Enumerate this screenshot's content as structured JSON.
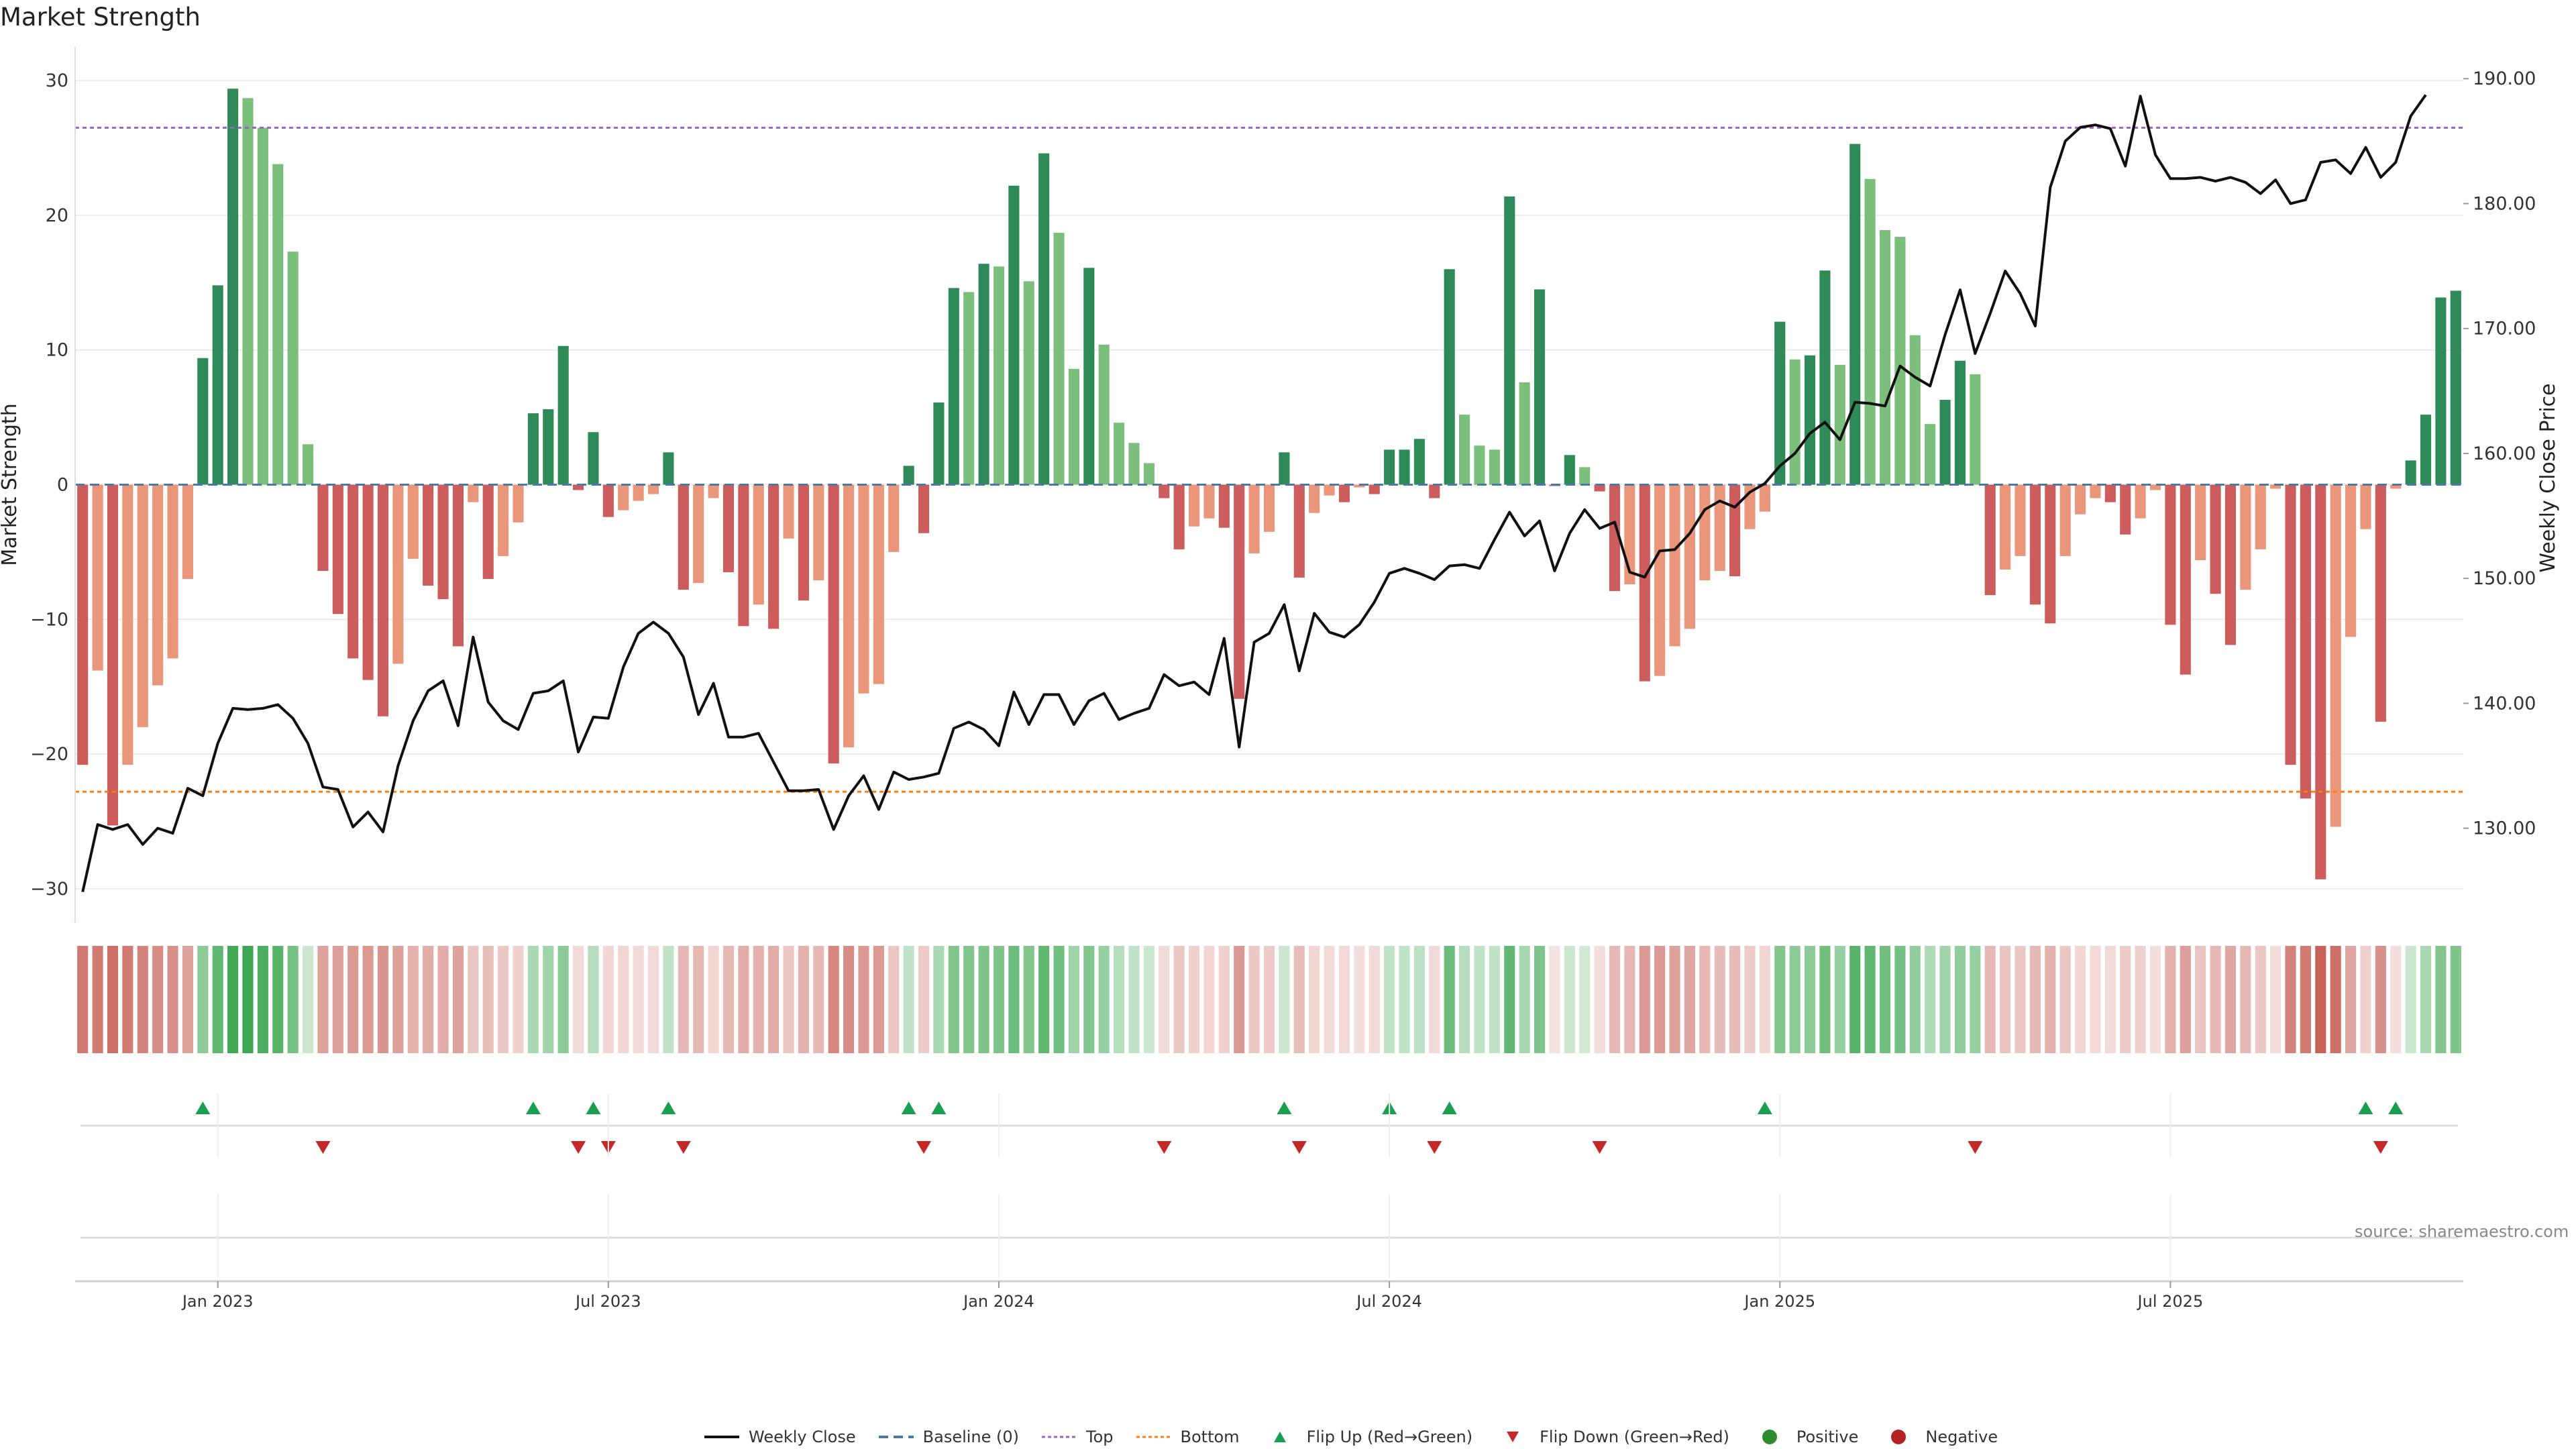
{
  "title": "Market Strength",
  "source": "source: sharemaestro.com",
  "colors": {
    "green_dark": "#2e8b57",
    "green_light": "#7cbf7c",
    "red_dark": "#cd5c5c",
    "red_light": "#e9967a",
    "line": "#111111",
    "baseline": "#4e79a7",
    "top": "#9467bd",
    "bottom": "#ff7f0e",
    "flip_up": "#1a9e4f",
    "flip_down": "#c62828",
    "positive": "#2e8b2e",
    "negative": "#b22222"
  },
  "legend": [
    {
      "key": "line",
      "label": "Weekly Close"
    },
    {
      "key": "baseline",
      "label": "Baseline (0)"
    },
    {
      "key": "top",
      "label": "Top"
    },
    {
      "key": "bottom",
      "label": "Bottom"
    },
    {
      "key": "flip_up",
      "label": "Flip Up (Red→Green)"
    },
    {
      "key": "flip_down",
      "label": "Flip Down (Green→Red)"
    },
    {
      "key": "positive",
      "label": "Positive"
    },
    {
      "key": "negative",
      "label": "Negative"
    }
  ],
  "chart_data": {
    "type": "bar",
    "title": "Market Strength",
    "ylabel": "Market Strength",
    "y2label": "Weekly Close Price",
    "ylim": [
      -32,
      32
    ],
    "y2lim": [
      123,
      192
    ],
    "yticks": [
      "30",
      "20",
      "10",
      "0",
      "−10",
      "−20",
      "−30"
    ],
    "y2ticks": [
      "190.00",
      "180.00",
      "170.00",
      "160.00",
      "150.00",
      "140.00",
      "130.00"
    ],
    "xticks": [
      "Jan 2023",
      "Jul 2023",
      "Jan 2024",
      "Jul 2024",
      "Jan 2025",
      "Jul 2025"
    ],
    "x_tick_weeks": [
      9,
      35,
      61,
      87,
      113,
      139
    ],
    "top_level": 26.5,
    "bottom_level": -22.8,
    "strength": [
      -20.8,
      -13.8,
      -25.3,
      -20.8,
      -18.0,
      -14.9,
      -12.9,
      -7.0,
      9.4,
      14.8,
      29.4,
      28.7,
      26.5,
      23.8,
      17.3,
      3.0,
      -6.4,
      -9.6,
      -12.9,
      -14.5,
      -17.2,
      -13.3,
      -5.5,
      -7.5,
      -8.5,
      -12.0,
      -1.3,
      -7.0,
      -5.3,
      -2.8,
      5.3,
      5.6,
      10.3,
      -0.4,
      3.9,
      -2.4,
      -1.9,
      -1.2,
      -0.7,
      2.4,
      -7.8,
      -7.3,
      -1.0,
      -6.5,
      -10.5,
      -8.9,
      -10.7,
      -4.0,
      -8.6,
      -7.1,
      -20.7,
      -19.5,
      -15.5,
      -14.8,
      -5.0,
      1.4,
      -3.6,
      6.1,
      14.6,
      14.3,
      16.4,
      16.2,
      22.2,
      15.1,
      24.6,
      18.7,
      8.6,
      16.1,
      10.4,
      4.6,
      3.1,
      1.6,
      -1.0,
      -4.8,
      -3.1,
      -2.5,
      -3.2,
      -15.9,
      -5.1,
      -3.5,
      2.4,
      -6.9,
      -2.1,
      -0.8,
      -1.3,
      -0.2,
      -0.7,
      2.6,
      2.6,
      3.4,
      -1.0,
      16.0,
      5.2,
      2.9,
      2.6,
      21.4,
      7.6,
      14.5,
      -0.1,
      2.2,
      1.3,
      -0.5,
      -7.9,
      -7.4,
      -14.6,
      -14.2,
      -12.0,
      -10.7,
      -7.1,
      -6.4,
      -6.8,
      -3.3,
      -2.0,
      12.1,
      9.3,
      9.6,
      15.9,
      8.9,
      25.3,
      22.7,
      18.9,
      18.4,
      11.1,
      4.5,
      6.3,
      9.2,
      8.2,
      -8.2,
      -6.3,
      -5.3,
      -8.9,
      -10.3,
      -5.3,
      -2.2,
      -1.0,
      -1.3,
      -3.7,
      -2.5,
      -0.4,
      -10.4,
      -14.1,
      -5.6,
      -8.1,
      -11.9,
      -7.8,
      -4.8,
      -0.3,
      -20.8,
      -23.3,
      -29.3,
      -25.4,
      -11.3,
      -3.3,
      -17.6,
      -0.3,
      1.8,
      5.2,
      13.9,
      14.4
    ],
    "close": [
      124.9,
      130.3,
      129.9,
      130.3,
      128.7,
      130.0,
      129.6,
      133.2,
      132.6,
      136.8,
      139.6,
      139.5,
      139.6,
      139.9,
      138.8,
      136.8,
      133.3,
      133.1,
      130.1,
      131.3,
      129.7,
      135.0,
      138.6,
      141.0,
      141.8,
      138.2,
      145.3,
      140.1,
      138.6,
      137.9,
      140.8,
      141.0,
      141.8,
      136.1,
      138.9,
      138.8,
      142.9,
      145.6,
      146.5,
      145.6,
      143.7,
      139.1,
      141.6,
      137.3,
      137.3,
      137.6,
      135.3,
      133.0,
      133.0,
      133.1,
      129.9,
      132.6,
      134.2,
      131.5,
      134.5,
      133.9,
      134.1,
      134.4,
      138.0,
      138.5,
      137.9,
      136.6,
      140.9,
      138.3,
      140.7,
      140.7,
      138.3,
      140.2,
      140.8,
      138.7,
      139.2,
      139.6,
      142.3,
      141.4,
      141.7,
      140.7,
      145.2,
      136.5,
      144.9,
      145.6,
      147.9,
      142.6,
      147.2,
      145.7,
      145.3,
      146.3,
      148.1,
      150.4,
      150.8,
      150.4,
      149.9,
      151.0,
      151.1,
      150.8,
      153.1,
      155.3,
      153.4,
      154.6,
      150.6,
      153.6,
      155.5,
      154.0,
      154.5,
      150.5,
      150.1,
      152.2,
      152.3,
      153.6,
      155.5,
      156.2,
      155.7,
      156.9,
      157.6,
      159.0,
      160.0,
      161.6,
      162.5,
      161.1,
      164.1,
      164.0,
      163.8,
      167.0,
      166.1,
      165.4,
      169.5,
      173.1,
      168.0,
      171.2,
      174.6,
      172.8,
      170.2,
      181.3,
      185.0,
      186.1,
      186.3,
      186.0,
      183.0,
      188.6,
      183.9,
      182.0,
      182.0,
      182.1,
      181.8,
      182.1,
      181.7,
      180.8,
      181.9,
      180.0,
      180.3,
      183.3,
      183.5,
      182.4,
      184.5,
      182.1,
      183.3,
      187.0,
      188.7
    ],
    "flip_up_weeks": [
      8,
      30,
      34,
      39,
      55,
      57,
      80,
      87,
      91,
      112,
      152,
      154
    ],
    "flip_down_weeks": [
      16,
      33,
      35,
      40,
      56,
      72,
      81,
      90,
      101,
      126,
      153
    ],
    "strip_levels": [
      0.72,
      0.72,
      0.78,
      0.72,
      0.68,
      0.62,
      0.6,
      0.5,
      0.55,
      0.75,
      0.9,
      0.92,
      0.85,
      0.8,
      0.65,
      0.25,
      0.5,
      0.52,
      0.55,
      0.55,
      0.58,
      0.52,
      0.42,
      0.45,
      0.45,
      0.5,
      0.3,
      0.35,
      0.3,
      0.25,
      0.4,
      0.45,
      0.55,
      0.2,
      0.35,
      0.22,
      0.22,
      0.2,
      0.2,
      0.3,
      0.38,
      0.38,
      0.22,
      0.38,
      0.45,
      0.42,
      0.45,
      0.3,
      0.42,
      0.38,
      0.65,
      0.62,
      0.55,
      0.55,
      0.3,
      0.3,
      0.28,
      0.4,
      0.6,
      0.6,
      0.62,
      0.62,
      0.7,
      0.6,
      0.75,
      0.68,
      0.45,
      0.6,
      0.5,
      0.35,
      0.3,
      0.25,
      0.2,
      0.3,
      0.25,
      0.22,
      0.25,
      0.55,
      0.3,
      0.28,
      0.25,
      0.35,
      0.22,
      0.2,
      0.2,
      0.18,
      0.2,
      0.3,
      0.3,
      0.32,
      0.2,
      0.7,
      0.35,
      0.3,
      0.3,
      0.75,
      0.42,
      0.62,
      0.15,
      0.25,
      0.22,
      0.18,
      0.38,
      0.38,
      0.55,
      0.55,
      0.5,
      0.48,
      0.38,
      0.36,
      0.36,
      0.28,
      0.22,
      0.6,
      0.55,
      0.55,
      0.68,
      0.5,
      0.8,
      0.75,
      0.68,
      0.66,
      0.52,
      0.38,
      0.45,
      0.52,
      0.5,
      0.38,
      0.32,
      0.3,
      0.38,
      0.42,
      0.3,
      0.22,
      0.2,
      0.2,
      0.28,
      0.25,
      0.18,
      0.42,
      0.52,
      0.32,
      0.38,
      0.48,
      0.38,
      0.3,
      0.18,
      0.68,
      0.72,
      0.85,
      0.78,
      0.48,
      0.25,
      0.6,
      0.18,
      0.25,
      0.4,
      0.6,
      0.62
    ]
  }
}
